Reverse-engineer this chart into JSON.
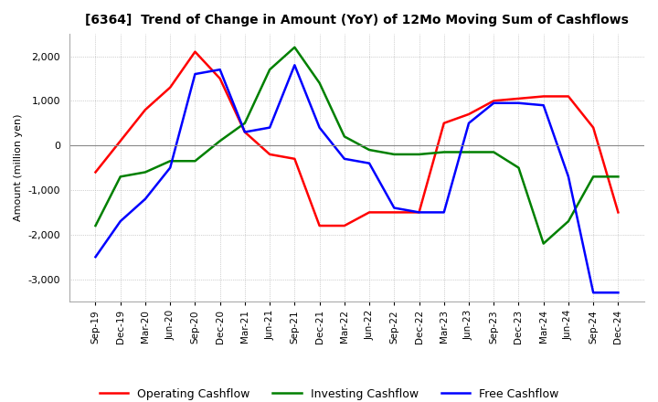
{
  "title": "[6364]  Trend of Change in Amount (YoY) of 12Mo Moving Sum of Cashflows",
  "ylabel": "Amount (million yen)",
  "ylim": [
    -3500,
    2500
  ],
  "yticks": [
    -3000,
    -2000,
    -1000,
    0,
    1000,
    2000
  ],
  "x_labels": [
    "Sep-19",
    "Dec-19",
    "Mar-20",
    "Jun-20",
    "Sep-20",
    "Dec-20",
    "Mar-21",
    "Jun-21",
    "Sep-21",
    "Dec-21",
    "Mar-22",
    "Jun-22",
    "Sep-22",
    "Dec-22",
    "Mar-23",
    "Jun-23",
    "Sep-23",
    "Dec-23",
    "Mar-24",
    "Jun-24",
    "Sep-24",
    "Dec-24"
  ],
  "operating": [
    -600,
    100,
    800,
    1300,
    2100,
    1500,
    300,
    -200,
    -300,
    -1800,
    -1800,
    -1500,
    -1500,
    -1500,
    500,
    700,
    1000,
    1050,
    1100,
    1100,
    400,
    -1500
  ],
  "investing": [
    -1800,
    -700,
    -600,
    -350,
    -350,
    100,
    500,
    1700,
    2200,
    1400,
    200,
    -100,
    -200,
    -200,
    -150,
    -150,
    -150,
    -500,
    -2200,
    -1700,
    -700,
    -700
  ],
  "free": [
    -2500,
    -1700,
    -1200,
    -500,
    1600,
    1700,
    300,
    400,
    1800,
    400,
    -300,
    -400,
    -1400,
    -1500,
    -1500,
    500,
    950,
    950,
    900,
    -700,
    -3300,
    -3300
  ],
  "operating_color": "#ff0000",
  "investing_color": "#008000",
  "free_color": "#0000ff",
  "background_color": "#ffffff",
  "grid_color": "#aaaaaa"
}
